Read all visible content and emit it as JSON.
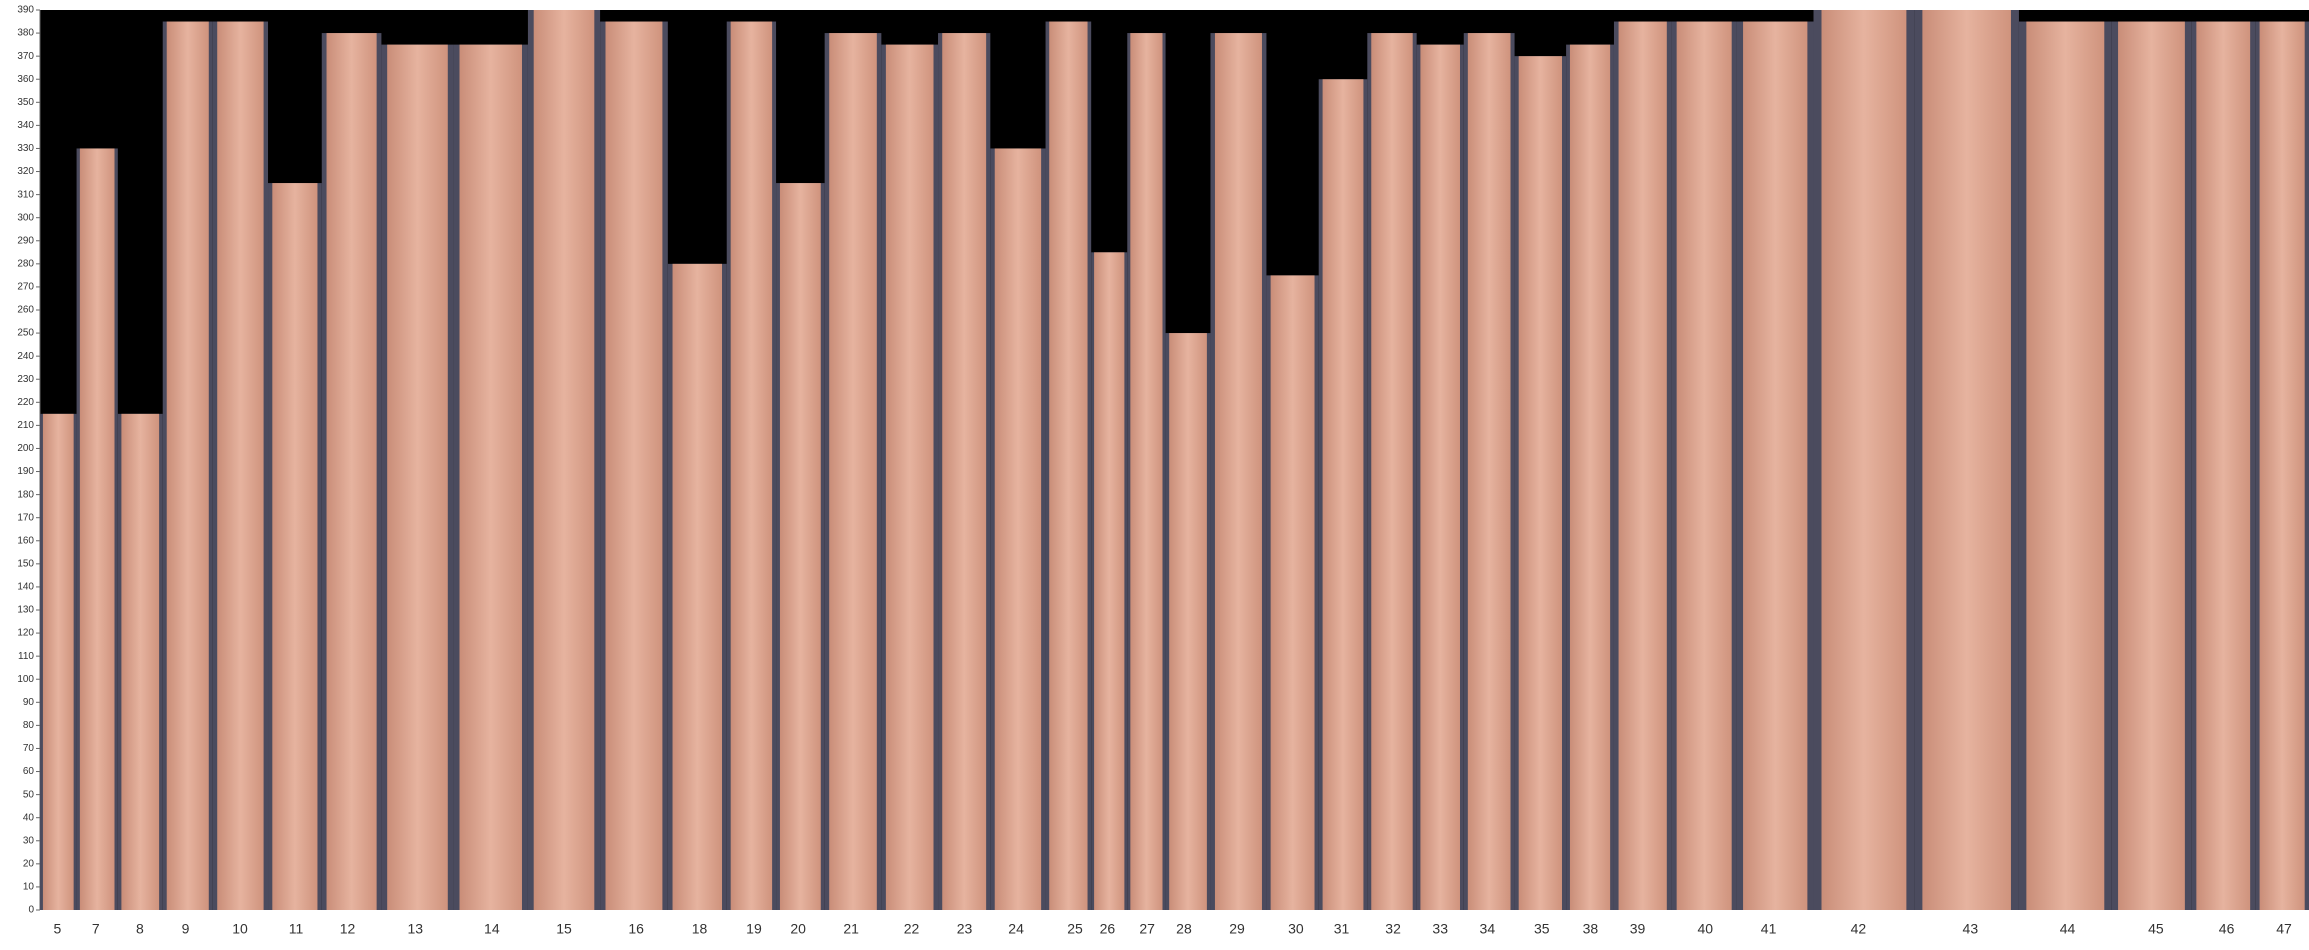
{
  "chart_data": {
    "type": "bar",
    "categories": [
      "5",
      "7",
      "8",
      "9",
      "10",
      "11",
      "12",
      "13",
      "14",
      "15",
      "16",
      "18",
      "19",
      "20",
      "21",
      "22",
      "23",
      "24",
      "25",
      "26",
      "27",
      "28",
      "29",
      "30",
      "31",
      "32",
      "33",
      "34",
      "35",
      "38",
      "39",
      "40",
      "41",
      "42",
      "43",
      "44",
      "45",
      "46",
      "47"
    ],
    "values": [
      215,
      330,
      215,
      385,
      385,
      315,
      380,
      375,
      375,
      390,
      385,
      280,
      385,
      315,
      380,
      375,
      380,
      330,
      385,
      285,
      380,
      250,
      380,
      275,
      360,
      380,
      375,
      380,
      370,
      375,
      385,
      385,
      385,
      390,
      390,
      385,
      385,
      385,
      385
    ],
    "color": "#dca28c",
    "ylim": [
      0,
      390
    ],
    "yticks": [
      0,
      10,
      20,
      30,
      40,
      50,
      60,
      70,
      80,
      90,
      100,
      110,
      120,
      130,
      140,
      150,
      160,
      170,
      180,
      190,
      200,
      210,
      220,
      230,
      240,
      250,
      260,
      270,
      280,
      290,
      300,
      310,
      320,
      330,
      340,
      350,
      360,
      370,
      380,
      390
    ],
    "grid": false
  }
}
